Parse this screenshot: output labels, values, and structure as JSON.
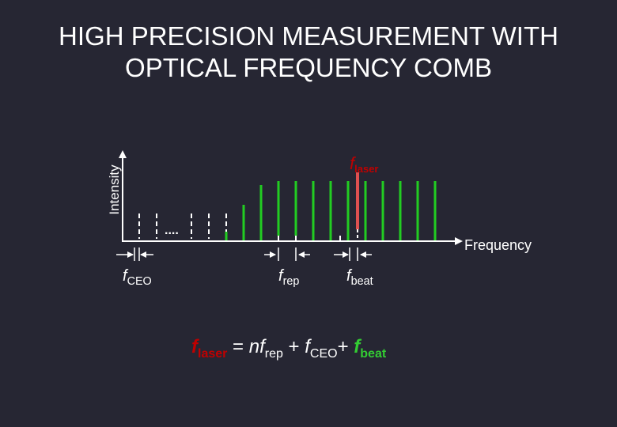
{
  "title": {
    "line1": "HIGH PRECISION MEASUREMENT WITH",
    "line2": "OPTICAL FREQUENCY COMB"
  },
  "axes": {
    "y_label": "Intensity",
    "x_label": "Frequency"
  },
  "labels": {
    "f_laser_top": {
      "f": "f",
      "sub": "laser"
    },
    "f_ceo": {
      "f": "f",
      "sub": "CEO"
    },
    "f_rep": {
      "f": "f",
      "sub": "rep"
    },
    "f_beat": {
      "f": "f",
      "sub": "beat"
    }
  },
  "equation": {
    "f1": "f",
    "laser_sub": "laser",
    "eq": " = ",
    "n": "n",
    "f2": "f",
    "rep_sub": "rep",
    "plus1": " + ",
    "f3": "f",
    "ceo_sub": "CEO",
    "plus2": "+ ",
    "f4": "f",
    "beat_sub": "beat"
  },
  "ellipsis": "....",
  "colors": {
    "background": "#262633",
    "comb_line": "#22cc22",
    "laser_line": "#e05050",
    "laser_text": "#c00000",
    "axis": "#ffffff"
  }
}
